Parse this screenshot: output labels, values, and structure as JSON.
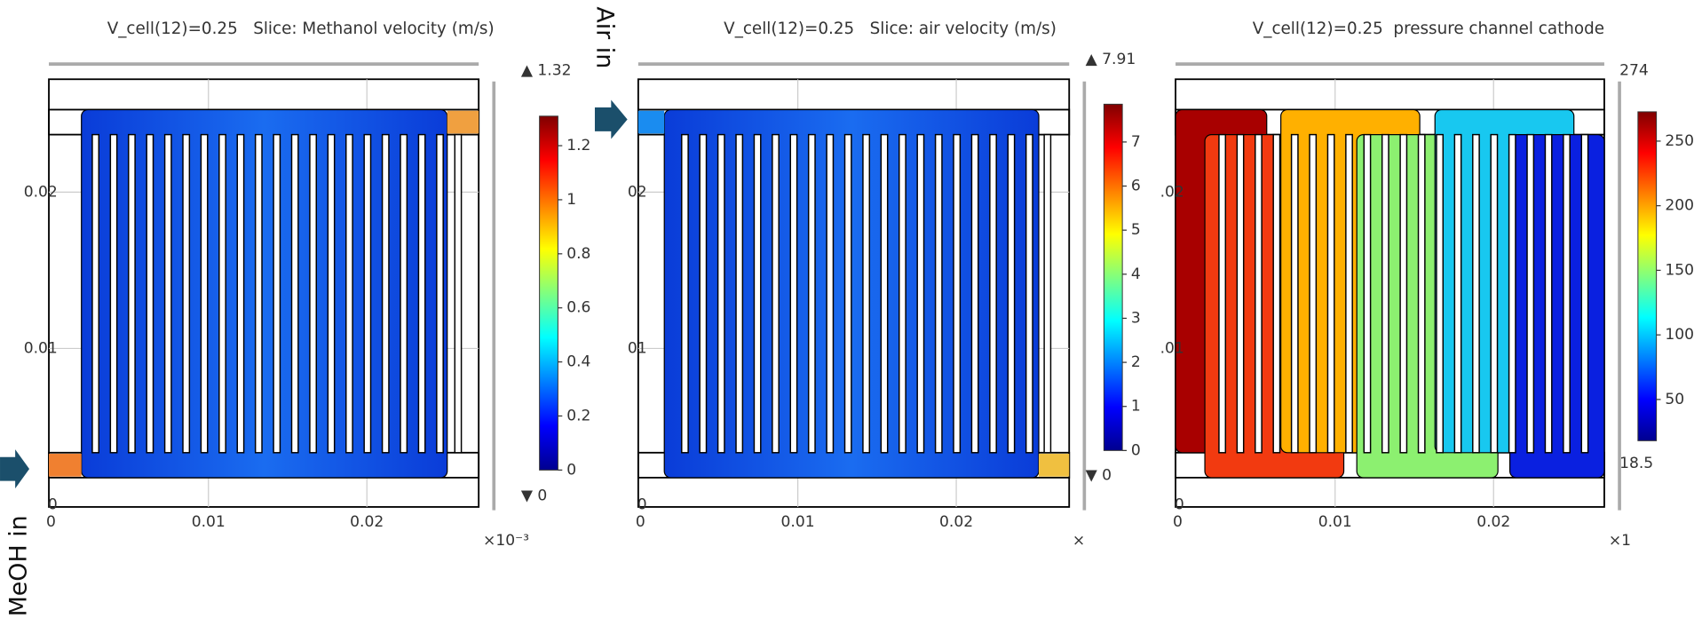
{
  "annotations": {
    "air_in": "Air in",
    "meoh_in": "MeOH in"
  },
  "panels": [
    {
      "title": "V_cell(12)=0.25   Slice: Methanol velocity (m/s)",
      "x_tick_labels": [
        "0",
        "0.01",
        "0.02"
      ],
      "y_tick_labels": [
        "0.02",
        "0.01",
        "0"
      ],
      "x_scale_label": "×10⁻³",
      "colorbar_tick_labels": [
        "0",
        "0.2",
        "0.4",
        "0.6",
        "0.8",
        "1",
        "1.2"
      ],
      "colorbar_max": "▲ 1.32",
      "colorbar_min": "▼ 0"
    },
    {
      "title": "V_cell(12)=0.25   Slice: air velocity (m/s)",
      "x_tick_labels": [
        "0",
        "0.01",
        "0.02"
      ],
      "y_tick_labels": [
        "02",
        "01",
        "0"
      ],
      "x_scale_label": "×",
      "colorbar_tick_labels": [
        "0",
        "1",
        "2",
        "3",
        "4",
        "5",
        "6",
        "7"
      ],
      "colorbar_max": "▲ 7.91",
      "colorbar_min": "▼ 0"
    },
    {
      "title": "V_cell(12)=0.25  pressure channel cathode",
      "x_tick_labels": [
        "0",
        "0.01",
        "0.02"
      ],
      "y_tick_labels": [
        ".02",
        ".01",
        "0"
      ],
      "x_scale_label": "×1",
      "colorbar_tick_labels": [
        "50",
        "100",
        "150",
        "200",
        "250"
      ],
      "colorbar_max": "274",
      "colorbar_min": "18.5"
    }
  ]
}
